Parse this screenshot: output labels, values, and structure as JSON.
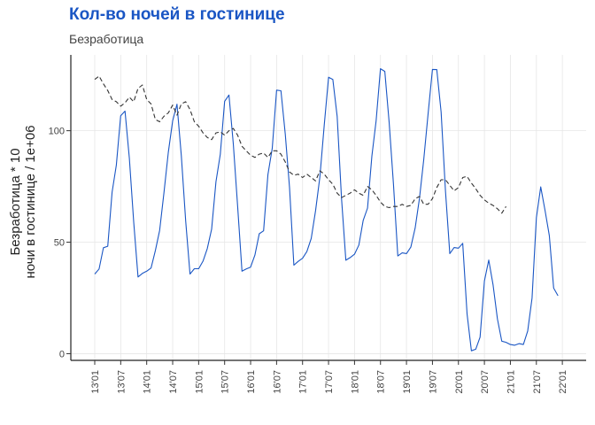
{
  "chart_data": {
    "type": "line",
    "title": "Кол-во ночей в гостинице",
    "subtitle": "Безработица",
    "ylabel": [
      "Безработица * 10",
      "ночи в гостинице / 1e+06"
    ],
    "xlabel": "",
    "ylim": [
      -3,
      134
    ],
    "yticks": [
      0,
      50,
      100
    ],
    "grid": true,
    "x_tick_labels": [
      "13'01",
      "13'07",
      "14'01",
      "14'07",
      "15'01",
      "15'07",
      "16'01",
      "16'07",
      "17'01",
      "17'07",
      "18'01",
      "18'07",
      "19'01",
      "19'07",
      "20'01",
      "20'07",
      "21'01",
      "21'07",
      "22'01"
    ],
    "start_month": "2013-01",
    "series": [
      {
        "color": "#1a56c4",
        "dash": "solid",
        "values": [
          35.7,
          38.0,
          47.5,
          48.2,
          72.4,
          84.6,
          106.7,
          108.8,
          87.6,
          59.1,
          34.4,
          36.0,
          37.0,
          38.4,
          46.3,
          55.3,
          72.3,
          90.3,
          104.4,
          111.9,
          88.7,
          59.6,
          35.7,
          38.1,
          38.1,
          41.5,
          47.1,
          55.8,
          77.1,
          89.4,
          113.2,
          116.0,
          94.1,
          66.0,
          37.0,
          38.0,
          38.8,
          44.2,
          53.8,
          55.1,
          80.3,
          92.2,
          118.2,
          117.9,
          98.4,
          74.5,
          39.7,
          41.4,
          42.8,
          45.8,
          51.7,
          64.1,
          79.3,
          102.5,
          124.0,
          123.0,
          106.4,
          69.8,
          41.9,
          43.1,
          44.6,
          48.7,
          59.8,
          65.3,
          88.6,
          104.5,
          127.8,
          126.6,
          103.8,
          75.9,
          43.8,
          45.2,
          44.9,
          47.8,
          56.4,
          69.8,
          87.1,
          107.6,
          127.5,
          127.4,
          108.4,
          73.1,
          44.9,
          47.6,
          47.3,
          49.5,
          17.9,
          1.3,
          2.0,
          7.4,
          32.6,
          42.0,
          30.8,
          15.6,
          5.6,
          5.1,
          4.1,
          3.8,
          4.5,
          4.1,
          10.2,
          24.9,
          61.0,
          74.8,
          64.2,
          53.0,
          29.4,
          26.0
        ]
      },
      {
        "color": "#333333",
        "dash": "dashed",
        "values": [
          123.0,
          124.5,
          121.0,
          118.0,
          114.0,
          113.0,
          111.0,
          112.5,
          115.0,
          113.0,
          119.0,
          120.5,
          114.0,
          112.0,
          105.0,
          104.0,
          106.5,
          108.0,
          111.5,
          107.0,
          112.0,
          113.0,
          109.5,
          104.0,
          102.0,
          99.0,
          97.0,
          96.0,
          99.0,
          99.5,
          98.0,
          100.0,
          101.0,
          98.0,
          93.0,
          91.0,
          89.0,
          88.0,
          89.5,
          90.0,
          88.0,
          91.0,
          91.0,
          89.5,
          86.0,
          81.5,
          80.0,
          80.5,
          79.0,
          80.5,
          79.0,
          77.5,
          82.0,
          80.5,
          78.0,
          76.0,
          72.0,
          70.0,
          71.0,
          72.0,
          73.5,
          72.0,
          71.0,
          75.0,
          73.5,
          71.0,
          68.0,
          66.0,
          65.5,
          66.0,
          66.0,
          67.0,
          66.0,
          66.5,
          69.5,
          70.5,
          67.0,
          67.0,
          69.5,
          74.5,
          78.0,
          78.0,
          75.5,
          73.0,
          74.5,
          79.0,
          79.5,
          76.5,
          74.0,
          71.0,
          69.0,
          67.5,
          66.5,
          65.0,
          63.0,
          66.0
        ]
      }
    ]
  }
}
